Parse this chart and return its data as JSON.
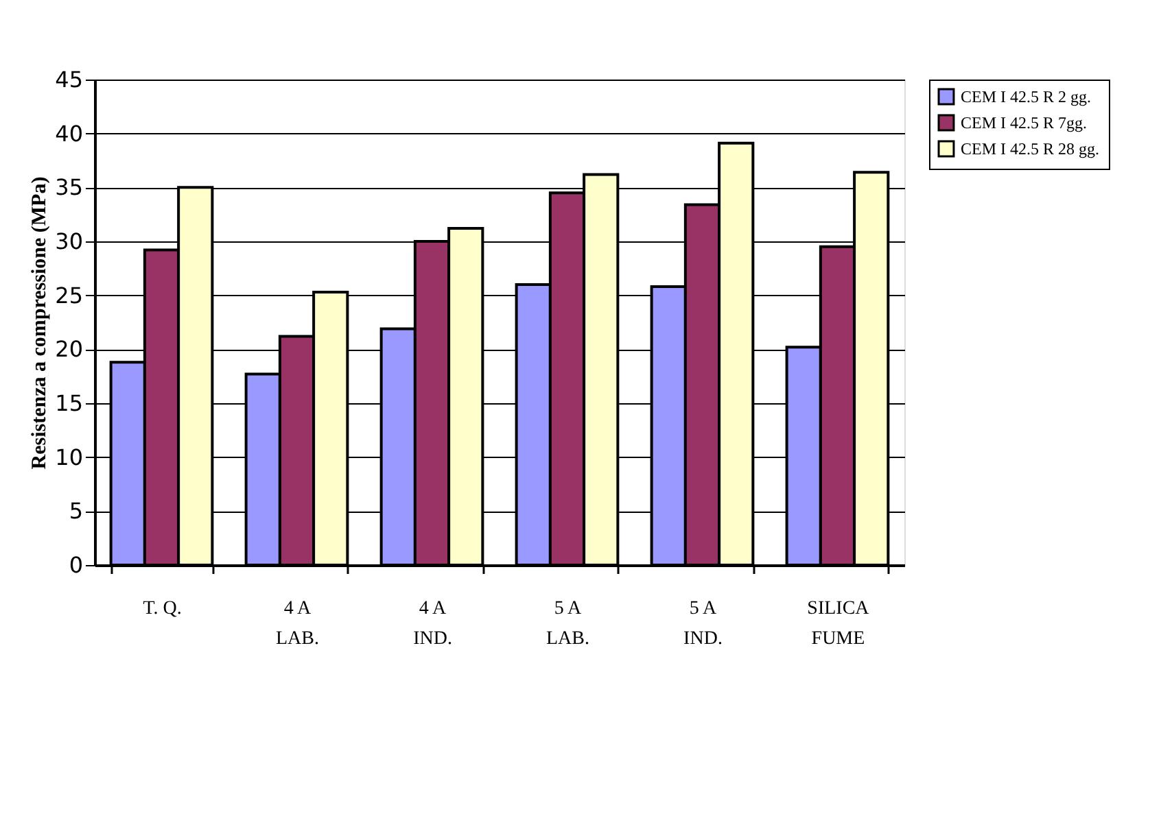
{
  "chart_data": {
    "type": "bar",
    "ylabel": "Resistenza a compressione (MPa)",
    "categories": [
      "T. Q.",
      "4 A LAB.",
      "4 A IND.",
      "5 A LAB.",
      "5 A IND.",
      "SILICA FUME"
    ],
    "series": [
      {
        "name": "CEM I 42.5 R 2 gg.",
        "color": "#9999ff",
        "values": [
          18.8,
          17.7,
          21.9,
          26.0,
          25.8,
          20.2
        ]
      },
      {
        "name": "CEM I 42.5 R 7gg.",
        "color": "#993366",
        "values": [
          29.2,
          21.2,
          30.0,
          34.5,
          33.4,
          29.5
        ]
      },
      {
        "name": "CEM I 42.5 R 28 gg.",
        "color": "#ffffcc",
        "values": [
          35.0,
          25.3,
          31.2,
          36.2,
          39.1,
          36.4
        ]
      }
    ],
    "ylim": [
      0,
      45
    ],
    "yticks": [
      0,
      5,
      10,
      15,
      20,
      25,
      30,
      35,
      40,
      45
    ],
    "grid": "y",
    "legend": "right"
  }
}
